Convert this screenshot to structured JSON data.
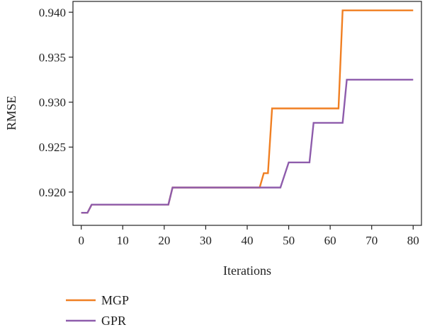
{
  "chart_data": {
    "type": "line",
    "xlabel": "Iterations",
    "ylabel": "RMSE",
    "xlim": [
      -2,
      82
    ],
    "ylim": [
      0.9163,
      0.9412
    ],
    "xticks": [
      0,
      10,
      20,
      30,
      40,
      50,
      60,
      70,
      80
    ],
    "xtick_labels": [
      "0",
      "10",
      "20",
      "30",
      "40",
      "50",
      "60",
      "70",
      "80"
    ],
    "yticks": [
      0.92,
      0.925,
      0.93,
      0.935,
      0.94
    ],
    "ytick_labels": [
      "0.920",
      "0.925",
      "0.930",
      "0.935",
      "0.940"
    ],
    "grid": false,
    "legend_position": "bottom-left, below plot",
    "series": [
      {
        "name": "MGP",
        "color": "#f07f22",
        "x": [
          0,
          1.5,
          2.5,
          21,
          22,
          43,
          44,
          45,
          46,
          62,
          63,
          80
        ],
        "y": [
          0.9177,
          0.9177,
          0.9186,
          0.9186,
          0.9205,
          0.9205,
          0.9221,
          0.9221,
          0.9293,
          0.9293,
          0.9402,
          0.9402
        ]
      },
      {
        "name": "GPR",
        "color": "#8e5cac",
        "x": [
          0,
          1.5,
          2.5,
          21,
          22,
          48,
          50,
          55,
          56,
          63,
          64,
          80
        ],
        "y": [
          0.9177,
          0.9177,
          0.9186,
          0.9186,
          0.9205,
          0.9205,
          0.9233,
          0.9233,
          0.9277,
          0.9277,
          0.9325,
          0.9325
        ]
      }
    ]
  }
}
